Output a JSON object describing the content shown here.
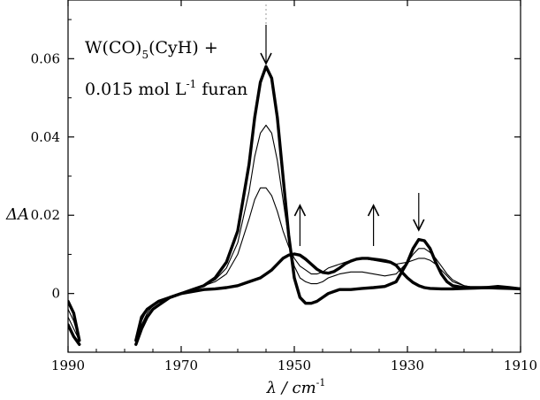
{
  "chart_data": {
    "type": "line",
    "title": "",
    "xlabel": "λ / cm",
    "xlabel_sup": "-1",
    "ylabel": "ΔA",
    "xlim": [
      1990,
      1910
    ],
    "ylim": [
      -0.015,
      0.075
    ],
    "x_ticks": [
      1990,
      1970,
      1950,
      1930,
      1910
    ],
    "x_tick_labels": [
      "1990",
      "1970",
      "1950",
      "1930",
      "1910"
    ],
    "y_ticks": [
      0,
      0.02,
      0.04,
      0.06
    ],
    "y_tick_labels": [
      "0",
      "0.02",
      "0.04",
      "0.06"
    ],
    "grid": false,
    "annotations": {
      "line1_main": "W(CO)",
      "line1_sub": "5",
      "line1_rest": "(CyH)  +",
      "line2_main": "0.015 mol L",
      "line2_sup": "-1",
      "line2_rest": " furan"
    },
    "arrows": [
      {
        "x": 1955,
        "direction": "down"
      },
      {
        "x": 1949,
        "direction": "up"
      },
      {
        "x": 1936,
        "direction": "up"
      },
      {
        "x": 1928,
        "direction": "down"
      }
    ],
    "series": [
      {
        "weight": "thick",
        "x": [
          1990,
          1989,
          1988,
          1987,
          1986,
          1985,
          1984,
          1983,
          1982,
          1981,
          1980,
          1979,
          1978,
          1977,
          1976,
          1975,
          1974,
          1972,
          1970,
          1968,
          1966,
          1964,
          1962,
          1960,
          1958,
          1957,
          1956,
          1955,
          1954,
          1953,
          1952,
          1951,
          1950,
          1949,
          1948,
          1947,
          1946,
          1945,
          1944,
          1942,
          1940,
          1938,
          1936,
          1934,
          1932,
          1930,
          1929,
          1928,
          1927,
          1926,
          1925,
          1924,
          1923,
          1922,
          1920,
          1918,
          1916,
          1914,
          1912,
          1910
        ],
        "y": [
          -0.002,
          -0.005,
          -0.012,
          null,
          null,
          null,
          null,
          null,
          null,
          null,
          null,
          null,
          -0.012,
          -0.006,
          -0.004,
          -0.003,
          -0.002,
          -0.001,
          0.0,
          0.001,
          0.002,
          0.004,
          0.008,
          0.016,
          0.033,
          0.045,
          0.054,
          0.058,
          0.055,
          0.045,
          0.03,
          0.015,
          0.004,
          -0.001,
          -0.0025,
          -0.0025,
          -0.002,
          -0.001,
          0.0,
          0.001,
          0.001,
          0.0013,
          0.0015,
          0.0018,
          0.003,
          0.008,
          0.0115,
          0.0138,
          0.0135,
          0.0115,
          0.008,
          0.005,
          0.003,
          0.002,
          0.0015,
          0.0015,
          0.0015,
          0.0018,
          0.0015,
          0.0012
        ]
      },
      {
        "weight": "thin",
        "x": [
          1990,
          1989,
          1988,
          1987,
          1986,
          1985,
          1984,
          1983,
          1982,
          1981,
          1980,
          1979,
          1978,
          1977,
          1976,
          1975,
          1974,
          1972,
          1970,
          1968,
          1966,
          1964,
          1962,
          1960,
          1958,
          1957,
          1956,
          1955,
          1954,
          1953,
          1952,
          1951,
          1950,
          1949,
          1948,
          1947,
          1946,
          1945,
          1944,
          1942,
          1940,
          1938,
          1936,
          1934,
          1932,
          1930,
          1929,
          1928,
          1927,
          1926,
          1925,
          1924,
          1923,
          1922,
          1920,
          1918,
          1916,
          1914,
          1912,
          1910
        ],
        "y": [
          -0.004,
          -0.007,
          -0.012,
          null,
          null,
          null,
          null,
          null,
          null,
          null,
          null,
          null,
          -0.012,
          -0.007,
          -0.004,
          -0.003,
          -0.002,
          -0.001,
          0.0,
          0.001,
          0.002,
          0.0035,
          0.0065,
          0.013,
          0.026,
          0.035,
          0.041,
          0.043,
          0.041,
          0.034,
          0.024,
          0.014,
          0.007,
          0.004,
          0.003,
          0.0025,
          0.0025,
          0.003,
          0.004,
          0.005,
          0.0055,
          0.0055,
          0.005,
          0.0045,
          0.005,
          0.008,
          0.01,
          0.0115,
          0.0115,
          0.0105,
          0.009,
          0.007,
          0.005,
          0.0035,
          0.002,
          0.0015,
          0.0015,
          0.0015,
          0.0013,
          0.0012
        ]
      },
      {
        "weight": "thin",
        "x": [
          1990,
          1989,
          1988,
          1987,
          1986,
          1985,
          1984,
          1983,
          1982,
          1981,
          1980,
          1979,
          1978,
          1977,
          1976,
          1975,
          1974,
          1972,
          1970,
          1968,
          1966,
          1964,
          1962,
          1960,
          1958,
          1957,
          1956,
          1955,
          1954,
          1953,
          1952,
          1951,
          1950,
          1949,
          1948,
          1947,
          1946,
          1945,
          1944,
          1942,
          1940,
          1938,
          1936,
          1934,
          1932,
          1930,
          1929,
          1928,
          1927,
          1926,
          1925,
          1924,
          1923,
          1922,
          1920,
          1918,
          1916,
          1914,
          1912,
          1910
        ],
        "y": [
          -0.006,
          -0.009,
          -0.012,
          null,
          null,
          null,
          null,
          null,
          null,
          null,
          null,
          null,
          -0.012,
          -0.008,
          -0.005,
          -0.003,
          -0.002,
          -0.001,
          0.0,
          0.001,
          0.002,
          0.003,
          0.005,
          0.01,
          0.019,
          0.024,
          0.027,
          0.027,
          0.025,
          0.021,
          0.016,
          0.012,
          0.009,
          0.007,
          0.006,
          0.005,
          0.005,
          0.0055,
          0.0065,
          0.0075,
          0.0085,
          0.009,
          0.0085,
          0.008,
          0.0075,
          0.008,
          0.0085,
          0.009,
          0.009,
          0.0085,
          0.0075,
          0.006,
          0.0045,
          0.003,
          0.002,
          0.0015,
          0.0013,
          0.0012,
          0.0012,
          0.0012
        ]
      },
      {
        "weight": "thick",
        "x": [
          1990,
          1989,
          1988,
          1987,
          1986,
          1985,
          1984,
          1983,
          1982,
          1981,
          1980,
          1979,
          1978,
          1977,
          1976,
          1975,
          1974,
          1972,
          1970,
          1968,
          1966,
          1964,
          1962,
          1960,
          1958,
          1956,
          1955,
          1954,
          1953,
          1952,
          1951,
          1950,
          1949,
          1948,
          1947,
          1946,
          1945,
          1944,
          1943,
          1942,
          1941,
          1940,
          1939,
          1938,
          1937,
          1936,
          1935,
          1934,
          1933,
          1932,
          1931,
          1930,
          1929,
          1928,
          1927,
          1926,
          1924,
          1922,
          1920,
          1918,
          1916,
          1914,
          1912,
          1910
        ],
        "y": [
          -0.008,
          -0.011,
          -0.013,
          null,
          null,
          null,
          null,
          null,
          null,
          null,
          null,
          null,
          -0.013,
          -0.009,
          -0.006,
          -0.004,
          -0.003,
          -0.001,
          0.0,
          0.0005,
          0.001,
          0.0012,
          0.0015,
          0.002,
          0.003,
          0.004,
          0.005,
          0.006,
          0.0075,
          0.009,
          0.0098,
          0.0101,
          0.0098,
          0.0088,
          0.0075,
          0.0062,
          0.0054,
          0.0052,
          0.0056,
          0.0065,
          0.0076,
          0.0083,
          0.0088,
          0.009,
          0.009,
          0.0088,
          0.0086,
          0.0084,
          0.008,
          0.0072,
          0.0055,
          0.004,
          0.0028,
          0.002,
          0.0015,
          0.0013,
          0.0012,
          0.0012,
          0.0013,
          0.0014,
          0.0015,
          0.0014,
          0.0013,
          0.0012
        ]
      }
    ]
  }
}
